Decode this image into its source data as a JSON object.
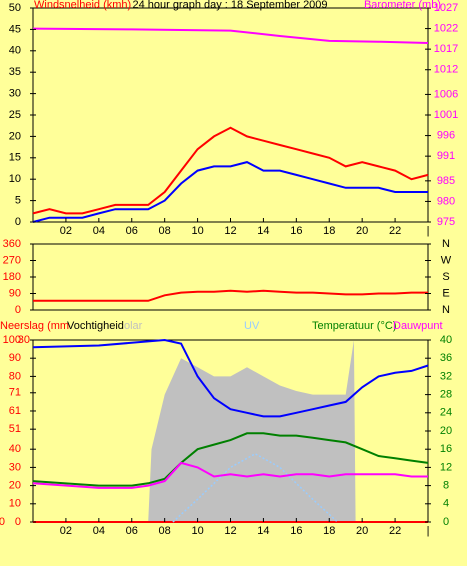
{
  "chart_data": [
    {
      "type": "line",
      "title": "24 hour graph day : 18 September 2009",
      "xlim": [
        0,
        24
      ],
      "xticks": [
        {
          "value": 2,
          "label": "02"
        },
        {
          "value": 4,
          "label": "04"
        },
        {
          "value": 6,
          "label": "06"
        },
        {
          "value": 8,
          "label": "08"
        },
        10,
        12,
        14,
        16,
        18,
        20,
        22,
        {
          "value": 24,
          "label": "|"
        }
      ],
      "ylim": [
        0,
        50
      ],
      "yticks": [
        0,
        5,
        10,
        15,
        20,
        25,
        30,
        35,
        40,
        45,
        50
      ],
      "ytick_color": "#000000",
      "y2lim": [
        975,
        1027
      ],
      "y2ticks": [
        975,
        980,
        985,
        991,
        996,
        1001,
        1006,
        1012,
        1017,
        1022,
        1027
      ],
      "y2tick_color": "#ff00ff",
      "series": [
        {
          "name": "Windsnelheid (kmh)",
          "color": "#ff0000",
          "x": [
            0,
            1,
            2,
            3,
            4,
            5,
            6,
            7,
            8,
            9,
            10,
            11,
            12,
            13,
            14,
            15,
            16,
            17,
            18,
            19,
            20,
            21,
            22,
            23,
            24
          ],
          "values": [
            2,
            3,
            2,
            2,
            3,
            4,
            4,
            4,
            7,
            12,
            17,
            20,
            22,
            20,
            19,
            18,
            17,
            16,
            15,
            13,
            14,
            13,
            12,
            10,
            11
          ]
        },
        {
          "color": "#0000ff",
          "x": [
            0,
            1,
            2,
            3,
            4,
            5,
            6,
            7,
            8,
            9,
            10,
            11,
            12,
            13,
            14,
            15,
            16,
            17,
            18,
            19,
            20,
            21,
            22,
            23,
            24
          ],
          "values": [
            0,
            1,
            1,
            1,
            2,
            3,
            3,
            3,
            5,
            9,
            12,
            13,
            13,
            14,
            12,
            12,
            11,
            10,
            9,
            8,
            8,
            8,
            7,
            7,
            7
          ]
        },
        {
          "name": "Barometer (mb)",
          "color": "#ff00ff",
          "axis": "y2",
          "x": [
            0,
            6,
            12,
            15,
            18,
            21,
            24
          ],
          "values": [
            1022,
            1021.8,
            1021.5,
            1020.2,
            1019,
            1018.8,
            1018.5
          ]
        }
      ]
    },
    {
      "type": "line",
      "xlim": [
        0,
        24
      ],
      "ylim": [
        0,
        360
      ],
      "yticks": [
        0,
        90,
        180,
        270,
        360
      ],
      "ytick_color": "#ff0000",
      "y2lim": [
        0,
        360
      ],
      "y2ticks": [
        {
          "value": 0,
          "label": "N"
        },
        {
          "value": 90,
          "label": "E"
        },
        {
          "value": 180,
          "label": "S"
        },
        {
          "value": 270,
          "label": "W"
        },
        {
          "value": 360,
          "label": "N"
        }
      ],
      "y2tick_color": "#000000",
      "series": [
        {
          "color": "#ff0000",
          "x": [
            0,
            2,
            4,
            6,
            7,
            8,
            9,
            10,
            11,
            12,
            13,
            14,
            15,
            16,
            17,
            18,
            19,
            20,
            21,
            22,
            23,
            24
          ],
          "values": [
            50,
            50,
            50,
            50,
            50,
            80,
            95,
            100,
            100,
            105,
            100,
            105,
            100,
            95,
            95,
            90,
            85,
            85,
            90,
            90,
            95,
            95
          ]
        }
      ]
    },
    {
      "type": "line",
      "xlim": [
        0,
        24
      ],
      "xticks": [
        {
          "value": 2,
          "label": "02"
        },
        {
          "value": 4,
          "label": "04"
        },
        {
          "value": 6,
          "label": "06"
        },
        {
          "value": 8,
          "label": "08"
        },
        10,
        12,
        14,
        16,
        18,
        20,
        22,
        {
          "value": 24,
          "label": "|"
        }
      ],
      "ylim": [
        0,
        100
      ],
      "yticks": [
        0,
        10,
        20,
        30,
        40,
        51,
        61,
        71,
        80,
        90,
        100
      ],
      "ytick_color": "#ff0000",
      "y2lim": [
        0,
        40
      ],
      "y2ticks": [
        0,
        4,
        8,
        12,
        16,
        20,
        24,
        28,
        32,
        36,
        40
      ],
      "y2tick_color": "#008000",
      "y3lim": [
        0,
        30
      ],
      "y3ticks": [
        0,
        30
      ],
      "y3tick_color": "#ff0000",
      "series": [
        {
          "name": "olar",
          "color": "#c0c0c0",
          "fill": true,
          "x": [
            7,
            7.2,
            8,
            9,
            10,
            11,
            12,
            13,
            14,
            15,
            16,
            17,
            18,
            19,
            19.5,
            19.6
          ],
          "values": [
            0,
            40,
            70,
            90,
            85,
            80,
            80,
            85,
            80,
            75,
            72,
            70,
            70,
            70,
            100,
            0
          ]
        },
        {
          "name": "Neerslag (mm",
          "color": "#ff0000",
          "axis": "y3",
          "x": [
            0,
            24
          ],
          "values": [
            0,
            0
          ]
        },
        {
          "name": "Vochtigheid",
          "color": "#0000ff",
          "x": [
            0,
            4,
            8,
            9,
            10,
            11,
            12,
            13,
            14,
            15,
            16,
            17,
            18,
            19,
            20,
            21,
            22,
            23,
            24
          ],
          "values": [
            96,
            97,
            100,
            98,
            80,
            68,
            62,
            60,
            58,
            58,
            60,
            62,
            64,
            66,
            74,
            80,
            82,
            83,
            86
          ]
        },
        {
          "name": "UV",
          "color": "#99ccff",
          "axis": "y2",
          "dash": true,
          "x": [
            8.5,
            10,
            12,
            13.5,
            15,
            17,
            18.5
          ],
          "values": [
            0,
            5,
            12,
            15,
            12,
            5,
            0
          ]
        },
        {
          "name": "Temperatuur (°C)",
          "color": "#008000",
          "axis": "y2",
          "x": [
            0,
            4,
            6,
            7,
            8,
            9,
            10,
            11,
            12,
            13,
            14,
            15,
            16,
            17,
            18,
            19,
            20,
            21,
            22,
            23,
            24
          ],
          "values": [
            9,
            8,
            8,
            8.5,
            9.5,
            13,
            16,
            17,
            18,
            19.5,
            19.5,
            19,
            19,
            18.5,
            18,
            17.5,
            16,
            14.5,
            14,
            13.5,
            13
          ]
        },
        {
          "name": "Dauwpunt",
          "color": "#ff00ff",
          "axis": "y2",
          "x": [
            0,
            4,
            6,
            7,
            8,
            9,
            10,
            11,
            12,
            13,
            14,
            15,
            16,
            17,
            18,
            19,
            20,
            21,
            22,
            23,
            24
          ],
          "values": [
            8.5,
            7.5,
            7.5,
            8,
            9,
            13,
            12,
            10,
            10.5,
            10,
            10.5,
            10,
            10.5,
            10.5,
            10,
            10.5,
            10.5,
            10.5,
            10.5,
            10,
            10
          ]
        }
      ]
    }
  ]
}
